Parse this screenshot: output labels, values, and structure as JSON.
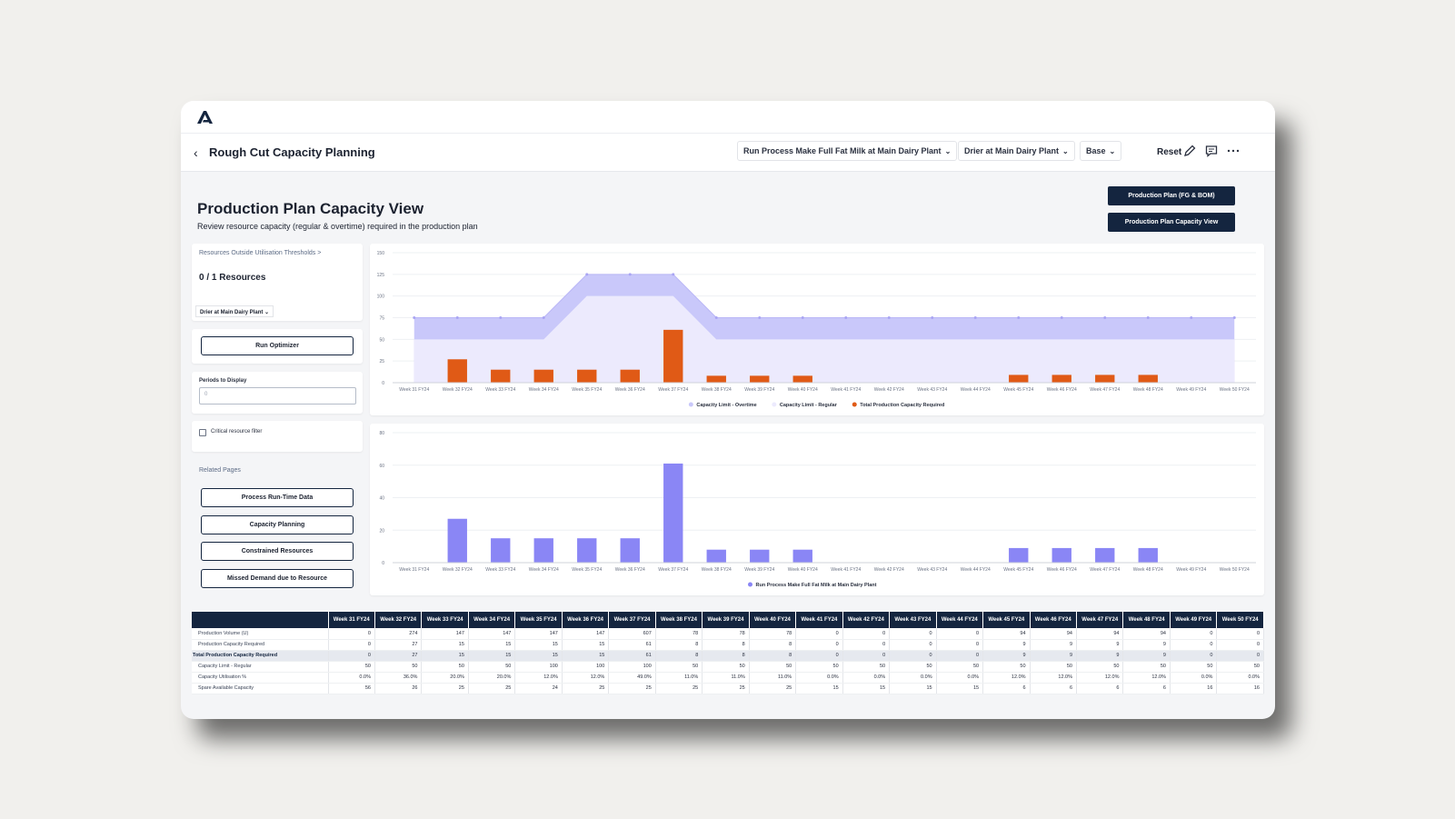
{
  "header": {
    "title": "Rough Cut Capacity Planning",
    "process_dropdown": "Run Process Make Full Fat Milk at Main Dairy Plant",
    "resource_dropdown": "Drier at Main Dairy Plant",
    "scenario_dropdown": "Base",
    "reset_label": "Reset"
  },
  "page": {
    "title": "Production Plan Capacity View",
    "subtitle": "Review resource capacity (regular & overtime) required in the production plan",
    "nav_buttons": [
      "Production Plan (FG & BOM)",
      "Production Plan Capacity View"
    ]
  },
  "sidebar": {
    "thresholds_link": "Resources Outside Utilisation Thresholds >",
    "resources_count": "0 / 1 Resources",
    "resource_filter": "Drier at Main Dairy Plant",
    "run_optimizer": "Run Optimizer",
    "periods_label": "Periods to Display",
    "periods_value": "0",
    "critical_filter": "Critical resource filter",
    "related_title": "Related Pages",
    "related_pages": [
      "Process Run-Time Data",
      "Capacity Planning",
      "Constrained Resources",
      "Missed Demand due to Resource"
    ]
  },
  "chart_data": [
    {
      "type": "area",
      "categories": [
        "Week 31 FY24",
        "Week 32 FY24",
        "Week 33 FY24",
        "Week 34 FY24",
        "Week 35 FY24",
        "Week 36 FY24",
        "Week 37 FY24",
        "Week 38 FY24",
        "Week 39 FY24",
        "Week 40 FY24",
        "Week 41 FY24",
        "Week 42 FY24",
        "Week 43 FY24",
        "Week 44 FY24",
        "Week 45 FY24",
        "Week 46 FY24",
        "Week 47 FY24",
        "Week 48 FY24",
        "Week 49 FY24",
        "Week 50 FY24"
      ],
      "yticks": [
        0,
        25,
        50,
        75,
        100,
        125,
        150
      ],
      "ylim": [
        0,
        150
      ],
      "series": [
        {
          "name": "Capacity Limit - Overtime",
          "type": "area",
          "color": "#c9c8fa",
          "values": [
            75,
            75,
            75,
            75,
            125,
            125,
            125,
            75,
            75,
            75,
            75,
            75,
            75,
            75,
            75,
            75,
            75,
            75,
            75,
            75
          ]
        },
        {
          "name": "Capacity Limit - Regular",
          "type": "area",
          "color": "#eceafd",
          "values": [
            50,
            50,
            50,
            50,
            100,
            100,
            100,
            50,
            50,
            50,
            50,
            50,
            50,
            50,
            50,
            50,
            50,
            50,
            50,
            50
          ]
        },
        {
          "name": "Total Production Capacity Required",
          "type": "bar",
          "color": "#e05a16",
          "values": [
            0,
            27,
            15,
            15,
            15,
            15,
            61,
            8,
            8,
            8,
            0,
            0,
            0,
            0,
            9,
            9,
            9,
            9,
            0,
            0
          ]
        }
      ],
      "legend": "bottom"
    },
    {
      "type": "bar",
      "categories": [
        "Week 31 FY24",
        "Week 32 FY24",
        "Week 33 FY24",
        "Week 34 FY24",
        "Week 35 FY24",
        "Week 36 FY24",
        "Week 37 FY24",
        "Week 38 FY24",
        "Week 39 FY24",
        "Week 40 FY24",
        "Week 41 FY24",
        "Week 42 FY24",
        "Week 43 FY24",
        "Week 44 FY24",
        "Week 45 FY24",
        "Week 46 FY24",
        "Week 47 FY24",
        "Week 48 FY24",
        "Week 49 FY24",
        "Week 50 FY24"
      ],
      "yticks": [
        0,
        20,
        40,
        60,
        80
      ],
      "ylim": [
        0,
        80
      ],
      "series": [
        {
          "name": "Run Process Make Full Fat Milk at Main Dairy Plant",
          "color": "#8a86f5",
          "values": [
            0,
            27,
            15,
            15,
            15,
            15,
            61,
            8,
            8,
            8,
            0,
            0,
            0,
            0,
            9,
            9,
            9,
            9,
            0,
            0
          ]
        }
      ],
      "legend": "bottom"
    }
  ],
  "table": {
    "columns": [
      "Week 31 FY24",
      "Week 32 FY24",
      "Week 33 FY24",
      "Week 34 FY24",
      "Week 35 FY24",
      "Week 36 FY24",
      "Week 37 FY24",
      "Week 38 FY24",
      "Week 39 FY24",
      "Week 40 FY24",
      "Week 41 FY24",
      "Week 42 FY24",
      "Week 43 FY24",
      "Week 44 FY24",
      "Week 45 FY24",
      "Week 46 FY24",
      "Week 47 FY24",
      "Week 48 FY24",
      "Week 49 FY24",
      "Week 50 FY24"
    ],
    "rows": [
      {
        "label": "Production Volume (U)",
        "values": [
          "0",
          "274",
          "147",
          "147",
          "147",
          "147",
          "607",
          "78",
          "78",
          "78",
          "0",
          "0",
          "0",
          "0",
          "94",
          "94",
          "94",
          "94",
          "0",
          "0"
        ]
      },
      {
        "label": "Production Capacity Required",
        "values": [
          "0",
          "27",
          "15",
          "15",
          "15",
          "15",
          "61",
          "8",
          "8",
          "8",
          "0",
          "0",
          "0",
          "0",
          "9",
          "9",
          "9",
          "9",
          "0",
          "0"
        ]
      },
      {
        "label": "Total Production Capacity Required",
        "highlight": true,
        "values": [
          "0",
          "27",
          "15",
          "15",
          "15",
          "15",
          "61",
          "8",
          "8",
          "8",
          "0",
          "0",
          "0",
          "0",
          "9",
          "9",
          "9",
          "9",
          "0",
          "0"
        ]
      },
      {
        "label": "Capacity Limit - Regular",
        "values": [
          "50",
          "50",
          "50",
          "50",
          "100",
          "100",
          "100",
          "50",
          "50",
          "50",
          "50",
          "50",
          "50",
          "50",
          "50",
          "50",
          "50",
          "50",
          "50",
          "50"
        ]
      },
      {
        "label": "Capacity Utilisation %",
        "values": [
          "0.0%",
          "36.0%",
          "20.0%",
          "20.0%",
          "12.0%",
          "12.0%",
          "49.0%",
          "11.0%",
          "11.0%",
          "11.0%",
          "0.0%",
          "0.0%",
          "0.0%",
          "0.0%",
          "12.0%",
          "12.0%",
          "12.0%",
          "12.0%",
          "0.0%",
          "0.0%"
        ]
      },
      {
        "label": "Spare Available Capacity",
        "values": [
          "56",
          "26",
          "25",
          "25",
          "24",
          "25",
          "25",
          "25",
          "25",
          "25",
          "15",
          "15",
          "15",
          "15",
          "6",
          "6",
          "6",
          "6",
          "16",
          "16"
        ]
      }
    ]
  }
}
